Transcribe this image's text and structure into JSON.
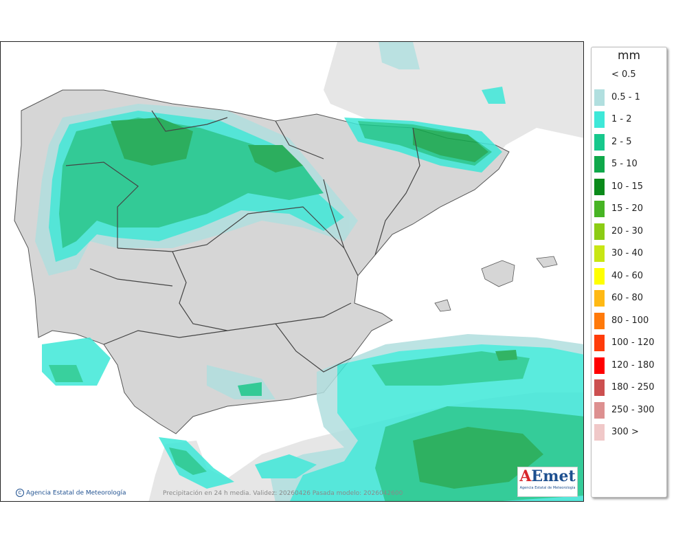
{
  "legend": {
    "unit": "mm",
    "classes": [
      {
        "label": "< 0.5",
        "color": "#ffffff"
      },
      {
        "label": "0.5 - 1",
        "color": "#b1dfdf"
      },
      {
        "label": "1 - 2",
        "color": "#3ee8d8"
      },
      {
        "label": "2 - 5",
        "color": "#17c88c"
      },
      {
        "label": "5 - 10",
        "color": "#0fa84a"
      },
      {
        "label": "10 - 15",
        "color": "#0a8a1a"
      },
      {
        "label": "15 - 20",
        "color": "#47b424"
      },
      {
        "label": "20 - 30",
        "color": "#8ccc14"
      },
      {
        "label": "30 - 40",
        "color": "#c8e614"
      },
      {
        "label": "40 - 60",
        "color": "#ffff00"
      },
      {
        "label": "60 - 80",
        "color": "#ffb914"
      },
      {
        "label": "80 - 100",
        "color": "#ff7a0a"
      },
      {
        "label": "100 - 120",
        "color": "#ff3c0a"
      },
      {
        "label": "120 - 180",
        "color": "#ff0000"
      },
      {
        "label": "180 - 250",
        "color": "#cc5050"
      },
      {
        "label": "250 - 300",
        "color": "#dd9090"
      },
      {
        "label": "300 >",
        "color": "#f0c8c8"
      }
    ]
  },
  "footer": {
    "credit": "Agencia Estatal de Meteorología",
    "credit_symbol": "C",
    "validity": "Precipitación en 24 h media. Validez: 20260426 Pasada modelo: 2026042600"
  },
  "logo": {
    "mark_a": "A",
    "mark_e": "E",
    "mark_rest": "met",
    "subtitle": "Agencia Estatal de Meteorología"
  }
}
